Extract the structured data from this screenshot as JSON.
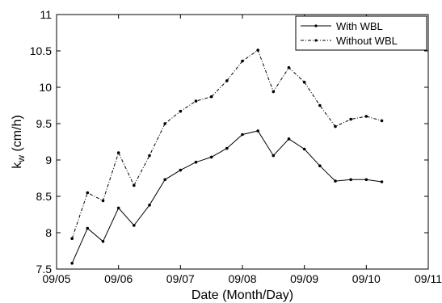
{
  "chart_data": {
    "type": "line",
    "title": "",
    "xlabel": "Date (Month/Day)",
    "ylabel_main": "k",
    "ylabel_sub": "w",
    "ylabel_unit": " (cm/h)",
    "xlim": [
      "09/05",
      "09/11"
    ],
    "ylim": [
      7.5,
      11
    ],
    "x_ticks": [
      "09/05",
      "09/06",
      "09/07",
      "09/08",
      "09/09",
      "09/10",
      "09/11"
    ],
    "y_ticks": [
      "7.5",
      "8",
      "8.5",
      "9",
      "9.5",
      "10",
      "10.5",
      "11"
    ],
    "grid": false,
    "legend_position": "top-right",
    "x": [
      "09/05 06:00",
      "09/05 12:00",
      "09/05 18:00",
      "09/06 00:00",
      "09/06 06:00",
      "09/06 12:00",
      "09/06 18:00",
      "09/07 00:00",
      "09/07 06:00",
      "09/07 12:00",
      "09/07 18:00",
      "09/08 00:00",
      "09/08 06:00",
      "09/08 12:00",
      "09/08 18:00",
      "09/09 00:00",
      "09/09 06:00",
      "09/09 12:00",
      "09/09 18:00",
      "09/10 00:00",
      "09/10 06:00"
    ],
    "series": [
      {
        "name": "With WBL",
        "style": "solid",
        "color": "#000000",
        "values": [
          7.58,
          8.06,
          7.88,
          8.34,
          8.1,
          8.38,
          8.73,
          8.86,
          8.97,
          9.04,
          9.16,
          9.35,
          9.4,
          9.06,
          9.29,
          9.15,
          8.92,
          8.71,
          8.73,
          8.73,
          8.7
        ]
      },
      {
        "name": "Without WBL",
        "style": "dashdot",
        "color": "#000000",
        "values": [
          7.92,
          8.55,
          8.44,
          9.1,
          8.65,
          9.06,
          9.5,
          9.67,
          9.81,
          9.87,
          10.09,
          10.36,
          10.51,
          9.94,
          10.27,
          10.07,
          9.75,
          9.46,
          9.56,
          9.6,
          9.54
        ]
      }
    ]
  }
}
